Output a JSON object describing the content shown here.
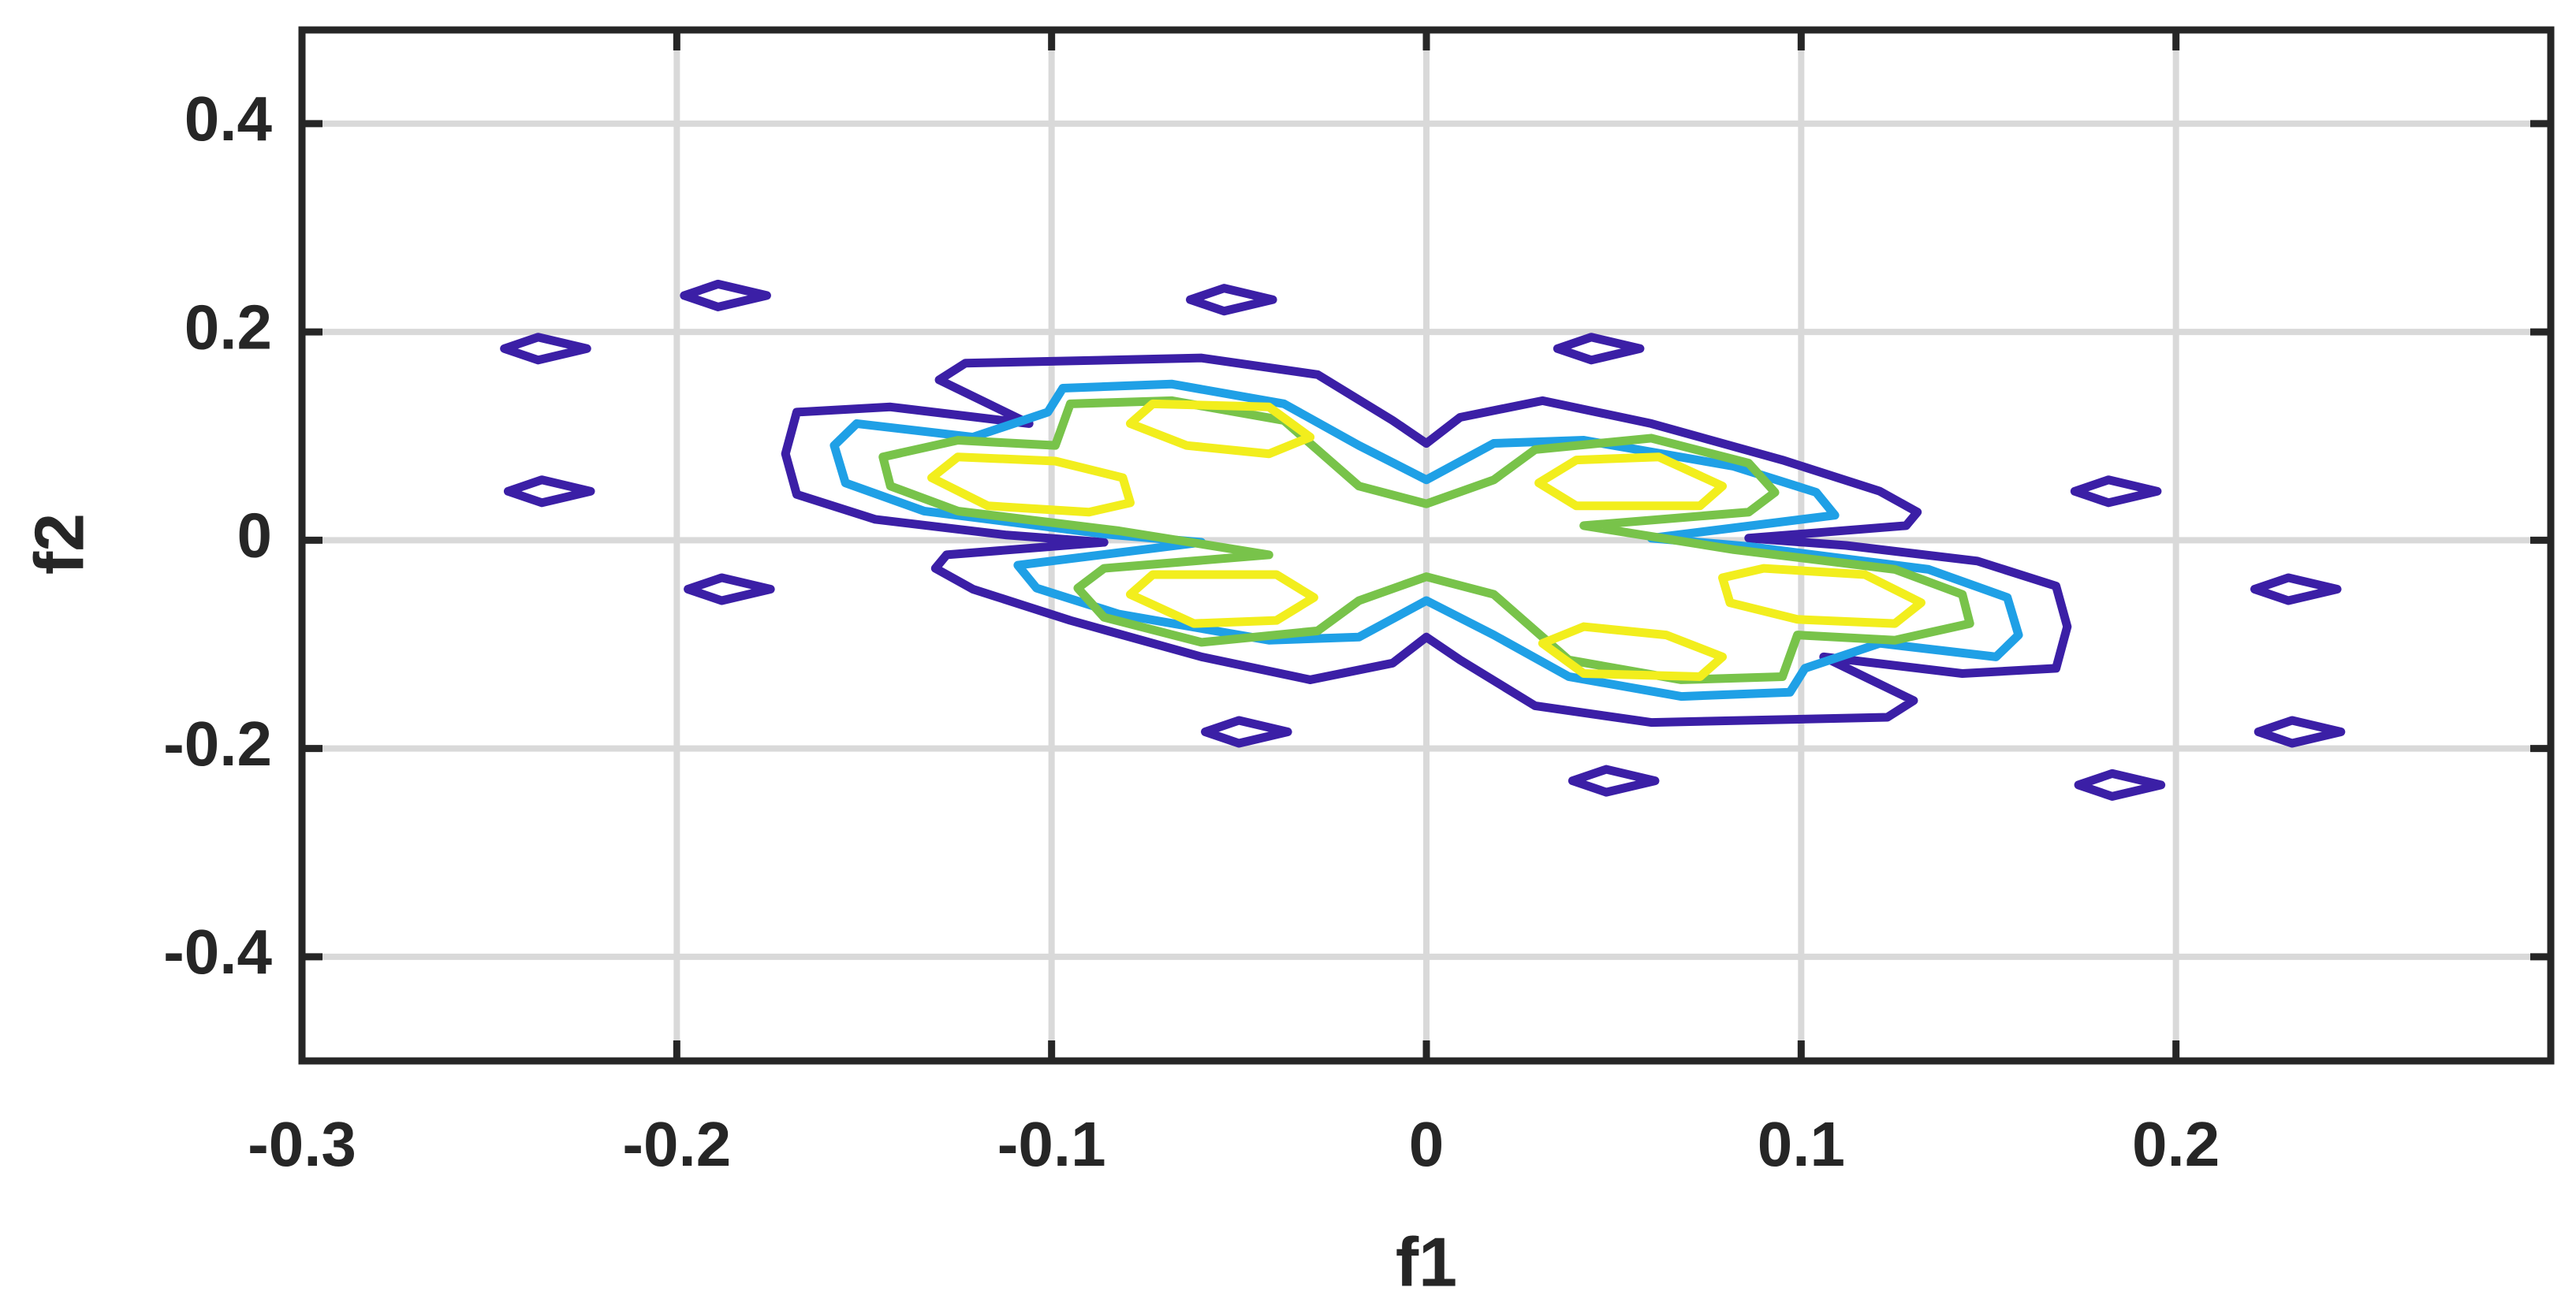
{
  "chart_data": {
    "type": "contour",
    "xlabel": "f1",
    "ylabel": "f2",
    "xlim": [
      -0.3,
      0.3
    ],
    "ylim": [
      -0.5,
      0.49
    ],
    "xticks": [
      -0.3,
      -0.2,
      -0.1,
      0,
      0.1,
      0.2
    ],
    "yticks": [
      -0.4,
      -0.2,
      0,
      0.2,
      0.4
    ],
    "grid": true,
    "series": [
      {
        "color": "#3b1fa6",
        "x": [
          0,
          0.009,
          0.031,
          0.06,
          0.095,
          0.121,
          0.131,
          0.128,
          0.086,
          0.112,
          0.147,
          0.168,
          0.171,
          0.168,
          0.143,
          0.106,
          0.13,
          0.123,
          0.06,
          0.029,
          0.009,
          0,
          -0.009,
          -0.031,
          -0.06,
          -0.095,
          -0.121,
          -0.131,
          -0.128,
          -0.086,
          -0.112,
          -0.147,
          -0.168,
          -0.171,
          -0.168,
          -0.143,
          -0.106,
          -0.13,
          -0.123,
          -0.06,
          -0.029,
          -0.009
        ],
        "y": [
          0.093,
          0.118,
          0.134,
          0.112,
          0.077,
          0.047,
          0.027,
          0.014,
          0.002,
          -0.005,
          -0.02,
          -0.044,
          -0.083,
          -0.123,
          -0.128,
          -0.112,
          -0.154,
          -0.17,
          -0.175,
          -0.159,
          -0.115,
          -0.093,
          -0.118,
          -0.134,
          -0.112,
          -0.077,
          -0.047,
          -0.027,
          -0.014,
          -0.002,
          0.005,
          0.02,
          0.044,
          0.083,
          0.123,
          0.128,
          0.112,
          0.154,
          0.17,
          0.175,
          0.159,
          0.115
        ]
      },
      {
        "color": "#1fa0e6",
        "x": [
          0,
          0.018,
          0.042,
          0.082,
          0.104,
          0.109,
          0.06,
          0.086,
          0.134,
          0.155,
          0.158,
          0.152,
          0.121,
          0.101,
          0.097,
          0.068,
          0.038,
          0.018,
          0,
          -0.018,
          -0.042,
          -0.082,
          -0.104,
          -0.109,
          -0.06,
          -0.086,
          -0.134,
          -0.155,
          -0.158,
          -0.152,
          -0.121,
          -0.101,
          -0.097,
          -0.068,
          -0.038,
          -0.018
        ],
        "y": [
          0.058,
          0.093,
          0.096,
          0.071,
          0.046,
          0.024,
          0.002,
          -0.006,
          -0.028,
          -0.055,
          -0.091,
          -0.112,
          -0.099,
          -0.123,
          -0.146,
          -0.15,
          -0.131,
          -0.091,
          -0.058,
          -0.093,
          -0.096,
          -0.071,
          -0.046,
          -0.024,
          -0.002,
          0.006,
          0.028,
          0.055,
          0.091,
          0.112,
          0.099,
          0.123,
          0.146,
          0.15,
          0.131,
          0.091
        ]
      },
      {
        "color": "#78c34a",
        "x": [
          0,
          0.018,
          0.029,
          0.06,
          0.086,
          0.093,
          0.086,
          0.042,
          0.082,
          0.125,
          0.143,
          0.145,
          0.125,
          0.099,
          0.095,
          0.068,
          0.038,
          0.018,
          0,
          -0.018,
          -0.029,
          -0.06,
          -0.086,
          -0.093,
          -0.086,
          -0.042,
          -0.082,
          -0.125,
          -0.143,
          -0.145,
          -0.125,
          -0.099,
          -0.095,
          -0.068,
          -0.038,
          -0.018
        ],
        "y": [
          0.035,
          0.058,
          0.087,
          0.098,
          0.074,
          0.046,
          0.027,
          0.014,
          -0.009,
          -0.028,
          -0.052,
          -0.08,
          -0.096,
          -0.091,
          -0.131,
          -0.134,
          -0.115,
          -0.052,
          -0.035,
          -0.058,
          -0.087,
          -0.098,
          -0.074,
          -0.046,
          -0.027,
          -0.014,
          0.009,
          0.028,
          0.052,
          0.08,
          0.096,
          0.091,
          0.131,
          0.134,
          0.115,
          0.052
        ]
      },
      {
        "color": "#f2ee1d",
        "x": [
          0.03,
          0.04,
          0.062,
          0.079,
          0.073,
          0.04
        ],
        "y": [
          0.055,
          0.077,
          0.08,
          0.052,
          0.033,
          0.033
        ]
      },
      {
        "color": "#f2ee1d",
        "x": [
          0.079,
          0.09,
          0.117,
          0.132,
          0.125,
          0.099,
          0.081
        ],
        "y": [
          -0.036,
          -0.027,
          -0.033,
          -0.06,
          -0.08,
          -0.076,
          -0.06
        ]
      },
      {
        "color": "#f2ee1d",
        "x": [
          0.031,
          0.042,
          0.064,
          0.079,
          0.073,
          0.042
        ],
        "y": [
          -0.099,
          -0.083,
          -0.091,
          -0.112,
          -0.131,
          -0.128
        ]
      },
      {
        "color": "#f2ee1d",
        "x": [
          -0.03,
          -0.04,
          -0.062,
          -0.079,
          -0.073,
          -0.04
        ],
        "y": [
          -0.055,
          -0.077,
          -0.08,
          -0.052,
          -0.033,
          -0.033
        ]
      },
      {
        "color": "#f2ee1d",
        "x": [
          -0.079,
          -0.09,
          -0.117,
          -0.132,
          -0.125,
          -0.099,
          -0.081
        ],
        "y": [
          0.036,
          0.027,
          0.033,
          0.06,
          0.08,
          0.076,
          0.06
        ]
      },
      {
        "color": "#f2ee1d",
        "x": [
          -0.031,
          -0.042,
          -0.064,
          -0.079,
          -0.073,
          -0.042
        ],
        "y": [
          0.099,
          0.083,
          0.091,
          0.112,
          0.131,
          0.128
        ]
      },
      {
        "color": "#3b1fa6",
        "x": [
          -0.246,
          -0.237,
          -0.224,
          -0.237
        ],
        "y": [
          0.184,
          0.195,
          0.184,
          0.173
        ]
      },
      {
        "color": "#3b1fa6",
        "x": [
          -0.198,
          -0.189,
          -0.176,
          -0.189
        ],
        "y": [
          0.235,
          0.246,
          0.235,
          0.224
        ]
      },
      {
        "color": "#3b1fa6",
        "x": [
          -0.063,
          -0.054,
          -0.041,
          -0.054
        ],
        "y": [
          0.231,
          0.242,
          0.231,
          0.22
        ]
      },
      {
        "color": "#3b1fa6",
        "x": [
          0.035,
          0.044,
          0.057,
          0.044
        ],
        "y": [
          0.184,
          0.195,
          0.184,
          0.173
        ]
      },
      {
        "color": "#3b1fa6",
        "x": [
          0.173,
          0.182,
          0.195,
          0.182
        ],
        "y": [
          0.047,
          0.058,
          0.047,
          0.036
        ]
      },
      {
        "color": "#3b1fa6",
        "x": [
          0.221,
          0.23,
          0.243,
          0.23
        ],
        "y": [
          -0.047,
          -0.036,
          -0.047,
          -0.058
        ]
      },
      {
        "color": "#3b1fa6",
        "x": [
          0.222,
          0.231,
          0.244,
          0.231
        ],
        "y": [
          -0.184,
          -0.173,
          -0.184,
          -0.195
        ]
      },
      {
        "color": "#3b1fa6",
        "x": [
          0.174,
          0.183,
          0.196,
          0.183
        ],
        "y": [
          -0.235,
          -0.224,
          -0.235,
          -0.246
        ]
      },
      {
        "color": "#3b1fa6",
        "x": [
          0.039,
          0.048,
          0.061,
          0.048
        ],
        "y": [
          -0.231,
          -0.22,
          -0.231,
          -0.242
        ]
      },
      {
        "color": "#3b1fa6",
        "x": [
          -0.059,
          -0.05,
          -0.037,
          -0.05
        ],
        "y": [
          -0.184,
          -0.173,
          -0.184,
          -0.195
        ]
      },
      {
        "color": "#3b1fa6",
        "x": [
          -0.197,
          -0.188,
          -0.175,
          -0.188
        ],
        "y": [
          -0.047,
          -0.036,
          -0.047,
          -0.058
        ]
      },
      {
        "color": "#3b1fa6",
        "x": [
          -0.245,
          -0.236,
          -0.223,
          -0.236
        ],
        "y": [
          0.047,
          0.058,
          0.047,
          0.036
        ]
      }
    ]
  }
}
